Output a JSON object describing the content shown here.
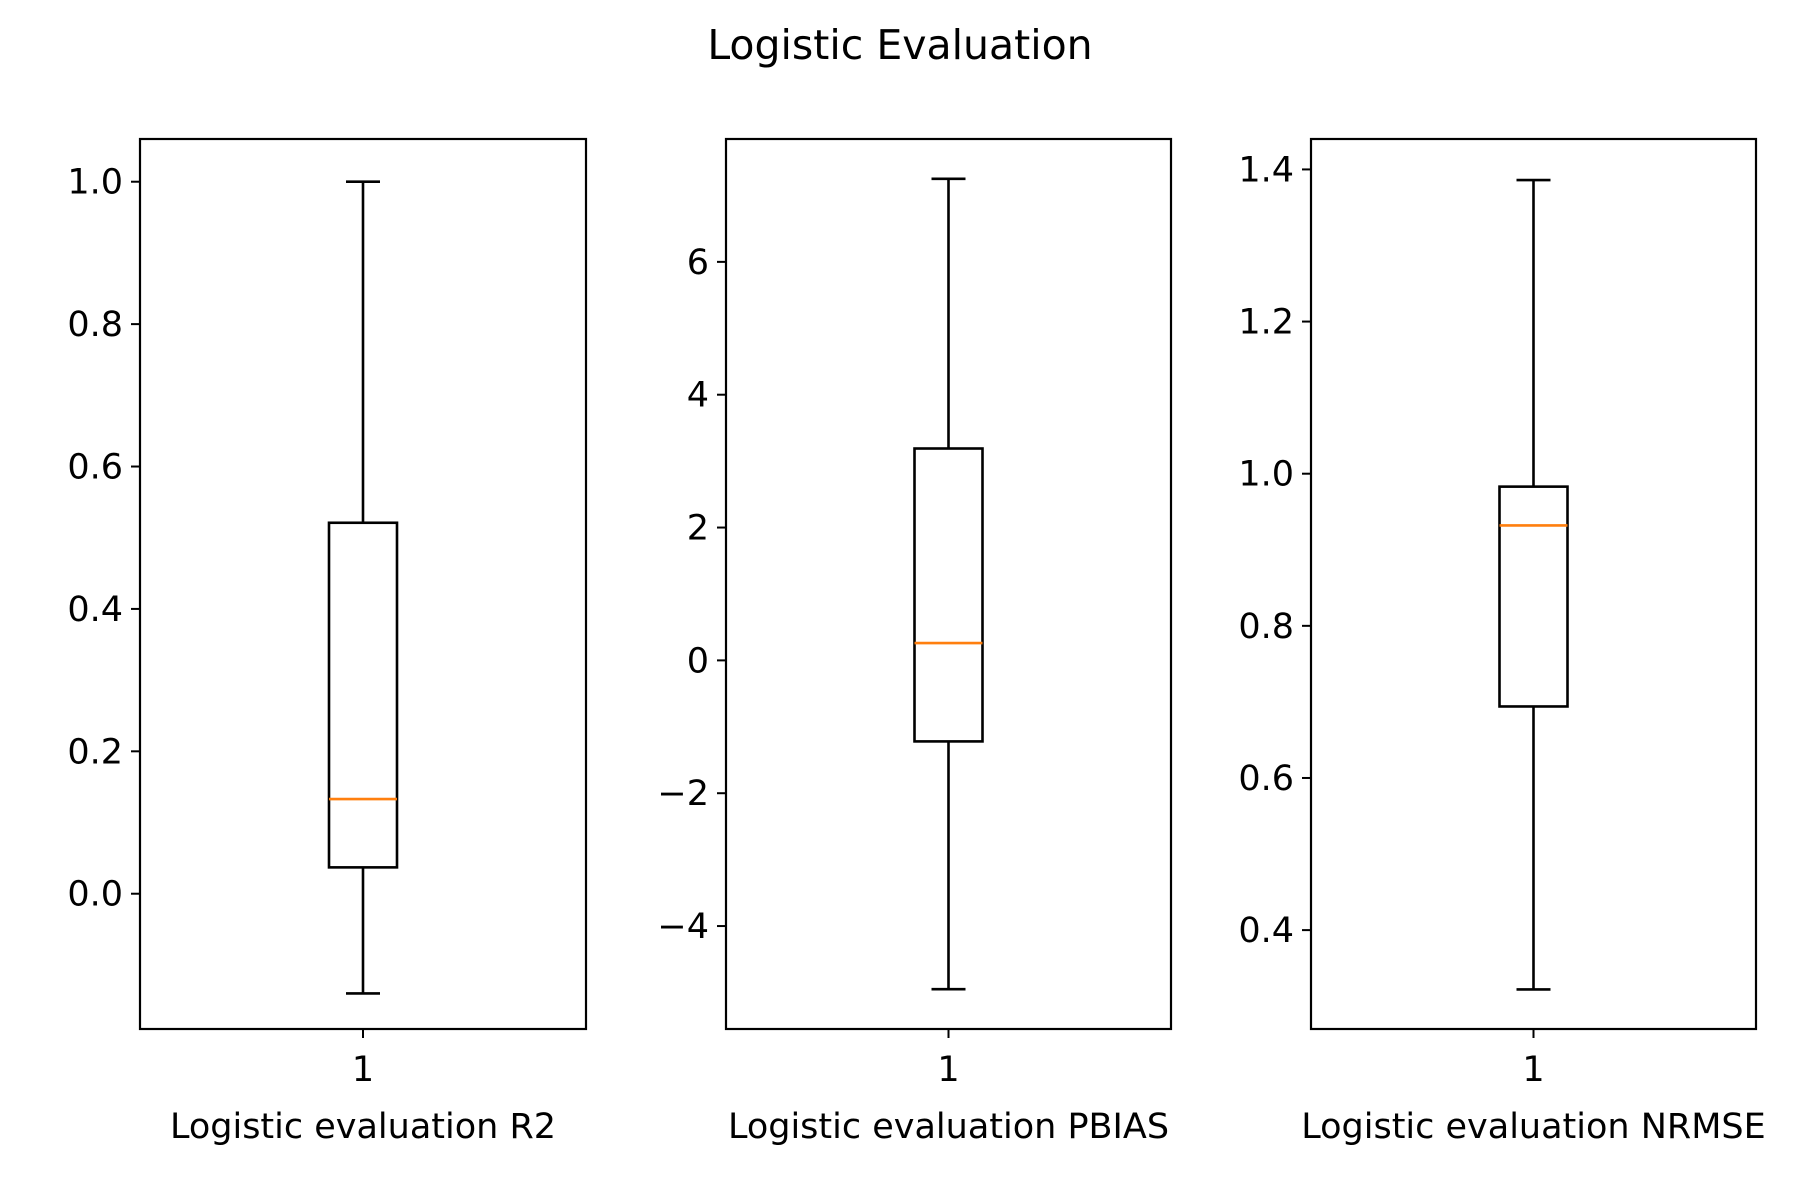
{
  "figure": {
    "title": "Logistic Evaluation"
  },
  "chart_data": [
    {
      "type": "box",
      "title": "",
      "xlabel": "Logistic evaluation R2",
      "ylabel": "",
      "categories": [
        "1"
      ],
      "ylim": [
        -0.19,
        1.06
      ],
      "yticks": [
        0.0,
        0.2,
        0.4,
        0.6,
        0.8,
        1.0
      ],
      "ytick_labels": [
        "0.0",
        "0.2",
        "0.4",
        "0.6",
        "0.8",
        "1.0"
      ],
      "series": [
        {
          "whisker_low": -0.14,
          "q1": 0.037,
          "median": 0.133,
          "q3": 0.521,
          "whisker_high": 1.0
        }
      ],
      "grid": false,
      "colors": {
        "box": "#000000",
        "median": "#ff7f0e"
      }
    },
    {
      "type": "box",
      "title": "",
      "xlabel": "Logistic evaluation PBIAS",
      "ylabel": "",
      "categories": [
        "1"
      ],
      "ylim": [
        -5.55,
        7.85
      ],
      "yticks": [
        -4,
        -2,
        0,
        2,
        4,
        6
      ],
      "ytick_labels": [
        "−4",
        "−2",
        "0",
        "2",
        "4",
        "6"
      ],
      "series": [
        {
          "whisker_low": -4.95,
          "q1": -1.22,
          "median": 0.26,
          "q3": 3.19,
          "whisker_high": 7.25
        }
      ],
      "grid": false,
      "colors": {
        "box": "#000000",
        "median": "#ff7f0e"
      }
    },
    {
      "type": "box",
      "title": "",
      "xlabel": "Logistic evaluation NRMSE",
      "ylabel": "",
      "categories": [
        "1"
      ],
      "ylim": [
        0.27,
        1.44
      ],
      "yticks": [
        0.4,
        0.6,
        0.8,
        1.0,
        1.2,
        1.4
      ],
      "ytick_labels": [
        "0.4",
        "0.6",
        "0.8",
        "1.0",
        "1.2",
        "1.4"
      ],
      "series": [
        {
          "whisker_low": 0.322,
          "q1": 0.694,
          "median": 0.932,
          "q3": 0.983,
          "whisker_high": 1.386
        }
      ],
      "grid": false,
      "colors": {
        "box": "#000000",
        "median": "#ff7f0e"
      }
    }
  ]
}
